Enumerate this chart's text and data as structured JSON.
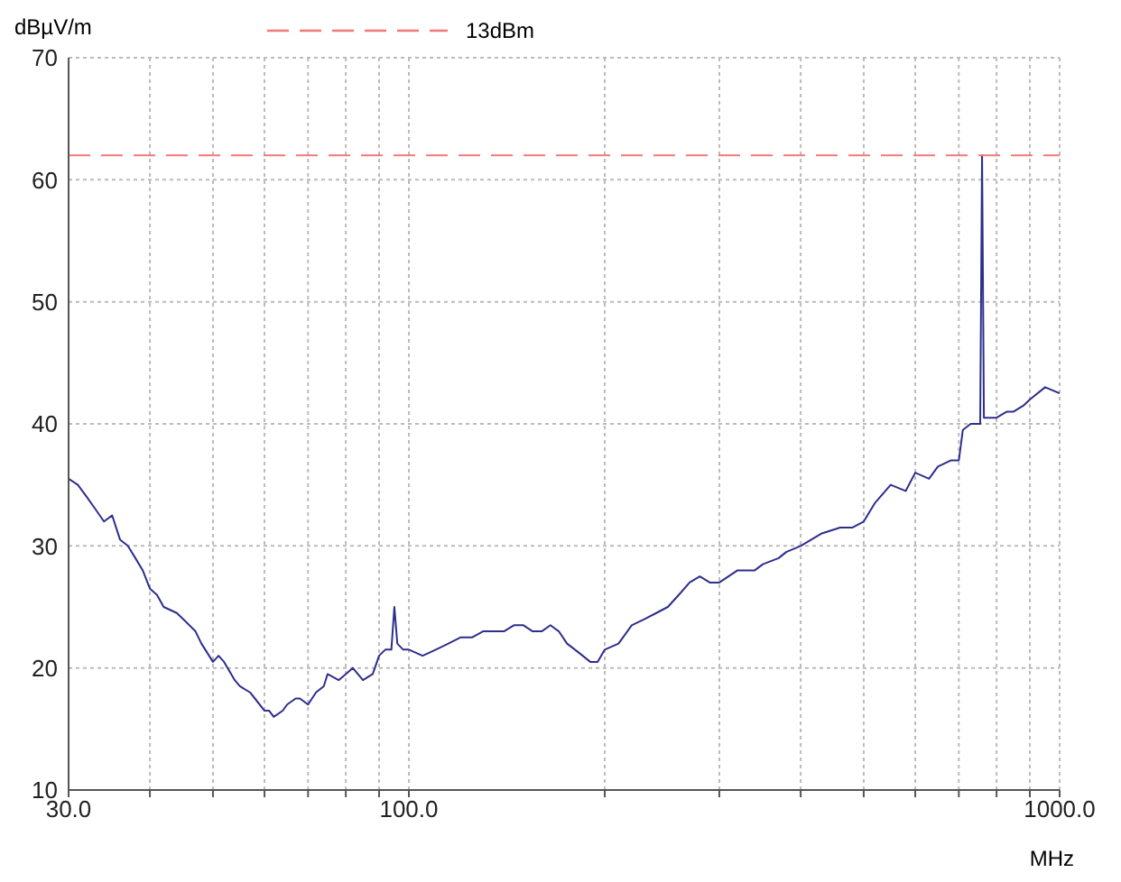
{
  "chart_data": {
    "type": "line",
    "xlabel": "MHz",
    "ylabel": "dBµV/m",
    "log": "x",
    "grid": true,
    "legend": "top",
    "marker": "none",
    "xlim": [
      30,
      1000
    ],
    "xticks": [
      {
        "value": 30,
        "label": "30.0"
      },
      {
        "value": 40,
        "label": null
      },
      {
        "value": 50,
        "label": null
      },
      {
        "value": 60,
        "label": null
      },
      {
        "value": 70,
        "label": null
      },
      {
        "value": 80,
        "label": null
      },
      {
        "value": 90,
        "label": null
      },
      {
        "value": 100,
        "label": "100.0"
      },
      {
        "value": 200,
        "label": null
      },
      {
        "value": 300,
        "label": null
      },
      {
        "value": 400,
        "label": null
      },
      {
        "value": 500,
        "label": null
      },
      {
        "value": 600,
        "label": null
      },
      {
        "value": 700,
        "label": null
      },
      {
        "value": 800,
        "label": null
      },
      {
        "value": 900,
        "label": null
      },
      {
        "value": 1000,
        "label": "1000.0"
      }
    ],
    "ylim": [
      10,
      70
    ],
    "yticks": [
      10,
      20,
      30,
      40,
      50,
      60,
      70
    ],
    "series": [
      {
        "color": "#2e2e8c",
        "x": [
          30,
          31,
          32,
          33,
          34,
          35,
          36,
          37,
          38,
          39,
          40,
          41,
          42,
          44,
          45,
          47,
          48,
          50,
          51,
          52,
          54,
          55,
          57,
          58,
          60,
          61,
          62,
          64,
          65,
          67,
          68,
          70,
          72,
          74,
          75,
          78,
          80,
          82,
          85,
          88,
          90,
          92,
          94,
          95,
          96,
          98,
          100,
          105,
          110,
          115,
          120,
          125,
          130,
          135,
          140,
          145,
          150,
          155,
          160,
          165,
          170,
          175,
          180,
          185,
          190,
          195,
          200,
          210,
          220,
          230,
          240,
          250,
          260,
          270,
          280,
          290,
          300,
          320,
          340,
          350,
          370,
          380,
          400,
          430,
          460,
          480,
          500,
          520,
          550,
          580,
          600,
          630,
          650,
          680,
          700,
          710,
          730,
          750,
          755,
          760,
          765,
          780,
          800,
          830,
          850,
          880,
          900,
          950,
          1000
        ],
        "values": [
          35.5,
          35,
          34,
          33,
          32,
          32.5,
          30.5,
          30,
          29,
          28,
          26.5,
          26,
          25,
          24.5,
          24,
          23,
          22,
          20.5,
          21,
          20.5,
          19,
          18.5,
          18,
          17.5,
          16.5,
          16.5,
          16,
          16.5,
          17,
          17.5,
          17.5,
          17,
          18,
          18.5,
          19.5,
          19,
          19.5,
          20,
          19,
          19.5,
          21,
          21.5,
          21.5,
          25,
          22,
          21.5,
          21.5,
          21,
          21.5,
          22,
          22.5,
          22.5,
          23,
          23,
          23,
          23.5,
          23.5,
          23,
          23,
          23.5,
          23,
          22,
          21.5,
          21,
          20.5,
          20.5,
          21.5,
          22,
          23.5,
          24,
          24.5,
          25,
          26,
          27,
          27.5,
          27,
          27,
          28,
          28,
          28.5,
          29,
          29.5,
          30,
          31,
          31.5,
          31.5,
          32,
          33.5,
          35,
          34.5,
          36,
          35.5,
          36.5,
          37,
          37,
          39.5,
          40,
          40,
          40,
          62,
          40.5,
          40.5,
          40.5,
          41,
          41,
          41.5,
          42,
          43,
          42.5
        ]
      },
      {
        "name": "13dBm",
        "color": "#f07878",
        "line_style": "dashed",
        "x": [
          30,
          1000
        ],
        "values": [
          62,
          62
        ]
      }
    ]
  }
}
